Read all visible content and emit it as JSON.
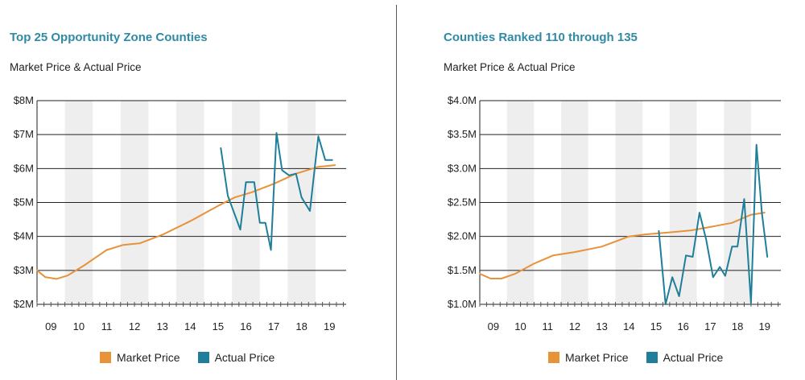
{
  "colors": {
    "market": "#e8923a",
    "actual": "#1f7f9a",
    "title": "#2f8aa5",
    "shade": "#eeeeee",
    "grid": "#222222"
  },
  "legend": {
    "market_label": "Market Price",
    "actual_label": "Actual Price"
  },
  "chart_data": [
    {
      "type": "line",
      "title": "Top 25 Opportunity Zone Counties",
      "subtitle": "Market Price & Actual Price",
      "xlabel": "",
      "ylabel": "",
      "ylim": [
        2,
        8
      ],
      "xlim": [
        2008.5,
        2019.6
      ],
      "y_ticks": [
        {
          "value": 2,
          "label": "$2M"
        },
        {
          "value": 3,
          "label": "$3M"
        },
        {
          "value": 4,
          "label": "$4M"
        },
        {
          "value": 5,
          "label": "$5M"
        },
        {
          "value": 6,
          "label": "$6M"
        },
        {
          "value": 7,
          "label": "$7M"
        },
        {
          "value": 8,
          "label": "$8M"
        }
      ],
      "x_ticks": [
        "09",
        "10",
        "11",
        "12",
        "13",
        "14",
        "15",
        "16",
        "17",
        "18",
        "19"
      ],
      "x_tick_years": [
        2009,
        2010,
        2011,
        2012,
        2013,
        2014,
        2015,
        2016,
        2017,
        2018,
        2019
      ],
      "series": [
        {
          "name": "Market Price",
          "x": [
            2008.5,
            2008.8,
            2009.2,
            2009.6,
            2010.2,
            2011.0,
            2011.6,
            2012.2,
            2013.0,
            2014.0,
            2015.0,
            2015.6,
            2016.2,
            2017.0,
            2017.8,
            2018.6,
            2019.2
          ],
          "values": [
            3.0,
            2.8,
            2.75,
            2.85,
            3.15,
            3.6,
            3.75,
            3.8,
            4.05,
            4.45,
            4.9,
            5.15,
            5.3,
            5.55,
            5.85,
            6.05,
            6.1
          ]
        },
        {
          "name": "Actual Price",
          "x": [
            2015.1,
            2015.35,
            2015.8,
            2016.0,
            2016.3,
            2016.5,
            2016.7,
            2016.9,
            2017.1,
            2017.3,
            2017.55,
            2017.8,
            2018.0,
            2018.3,
            2018.6,
            2018.85,
            2019.1
          ],
          "values": [
            6.6,
            5.2,
            4.2,
            5.6,
            5.6,
            4.4,
            4.4,
            3.6,
            7.05,
            5.95,
            5.8,
            5.85,
            5.15,
            4.75,
            6.95,
            6.25,
            6.25
          ]
        }
      ]
    },
    {
      "type": "line",
      "title": "Counties Ranked 110 through 135",
      "subtitle": "Market Price & Actual Price",
      "xlabel": "",
      "ylabel": "",
      "ylim": [
        1.0,
        4.0
      ],
      "xlim": [
        2008.5,
        2019.6
      ],
      "y_ticks": [
        {
          "value": 1.0,
          "label": "$1.0M"
        },
        {
          "value": 1.5,
          "label": "$1.5M"
        },
        {
          "value": 2.0,
          "label": "$2.0M"
        },
        {
          "value": 2.5,
          "label": "$2.5M"
        },
        {
          "value": 3.0,
          "label": "$3.0M"
        },
        {
          "value": 3.5,
          "label": "$3.5M"
        },
        {
          "value": 4.0,
          "label": "$4.0M"
        }
      ],
      "x_ticks": [
        "09",
        "10",
        "11",
        "12",
        "13",
        "14",
        "15",
        "16",
        "17",
        "18",
        "19"
      ],
      "x_tick_years": [
        2009,
        2010,
        2011,
        2012,
        2013,
        2014,
        2015,
        2016,
        2017,
        2018,
        2019
      ],
      "series": [
        {
          "name": "Market Price",
          "x": [
            2008.5,
            2008.9,
            2009.3,
            2009.8,
            2010.5,
            2011.2,
            2012.0,
            2013.0,
            2014.0,
            2014.6,
            2015.5,
            2016.3,
            2017.0,
            2017.8,
            2018.5,
            2019.0
          ],
          "values": [
            1.45,
            1.38,
            1.38,
            1.45,
            1.6,
            1.72,
            1.77,
            1.85,
            2.0,
            2.03,
            2.06,
            2.09,
            2.14,
            2.2,
            2.32,
            2.35
          ]
        },
        {
          "name": "Actual Price",
          "x": [
            2015.1,
            2015.35,
            2015.6,
            2015.85,
            2016.1,
            2016.35,
            2016.6,
            2016.85,
            2017.1,
            2017.35,
            2017.55,
            2017.8,
            2018.0,
            2018.25,
            2018.5,
            2018.7,
            2018.9,
            2019.1
          ],
          "values": [
            2.08,
            1.0,
            1.4,
            1.12,
            1.72,
            1.7,
            2.35,
            1.95,
            1.4,
            1.55,
            1.42,
            1.85,
            1.85,
            2.55,
            1.02,
            3.35,
            2.35,
            1.7
          ]
        }
      ]
    }
  ]
}
